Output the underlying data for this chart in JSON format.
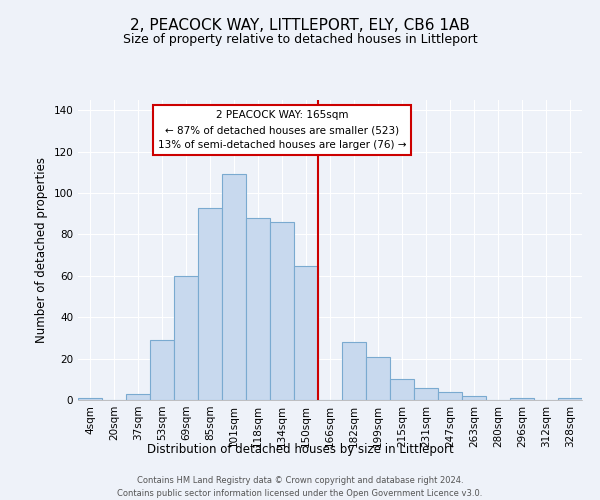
{
  "title": "2, PEACOCK WAY, LITTLEPORT, ELY, CB6 1AB",
  "subtitle": "Size of property relative to detached houses in Littleport",
  "xlabel": "Distribution of detached houses by size in Littleport",
  "ylabel": "Number of detached properties",
  "bin_labels": [
    "4sqm",
    "20sqm",
    "37sqm",
    "53sqm",
    "69sqm",
    "85sqm",
    "101sqm",
    "118sqm",
    "134sqm",
    "150sqm",
    "166sqm",
    "182sqm",
    "199sqm",
    "215sqm",
    "231sqm",
    "247sqm",
    "263sqm",
    "280sqm",
    "296sqm",
    "312sqm",
    "328sqm"
  ],
  "bar_heights": [
    1,
    0,
    3,
    29,
    60,
    93,
    109,
    88,
    86,
    65,
    0,
    28,
    21,
    10,
    6,
    4,
    2,
    0,
    1,
    0,
    1
  ],
  "bar_color": "#c8d9ee",
  "bar_edge_color": "#7aaad0",
  "vline_color": "#cc0000",
  "annotation_title": "2 PEACOCK WAY: 165sqm",
  "annotation_line1": "← 87% of detached houses are smaller (523)",
  "annotation_line2": "13% of semi-detached houses are larger (76) →",
  "annotation_box_color": "#ffffff",
  "annotation_box_edge": "#cc0000",
  "footer1": "Contains HM Land Registry data © Crown copyright and database right 2024.",
  "footer2": "Contains public sector information licensed under the Open Government Licence v3.0.",
  "bg_color": "#eef2f9",
  "ylim": [
    0,
    145
  ],
  "yticks": [
    0,
    20,
    40,
    60,
    80,
    100,
    120,
    140
  ],
  "title_fontsize": 11,
  "subtitle_fontsize": 9,
  "axis_label_fontsize": 8.5,
  "tick_fontsize": 7.5,
  "footer_fontsize": 6
}
